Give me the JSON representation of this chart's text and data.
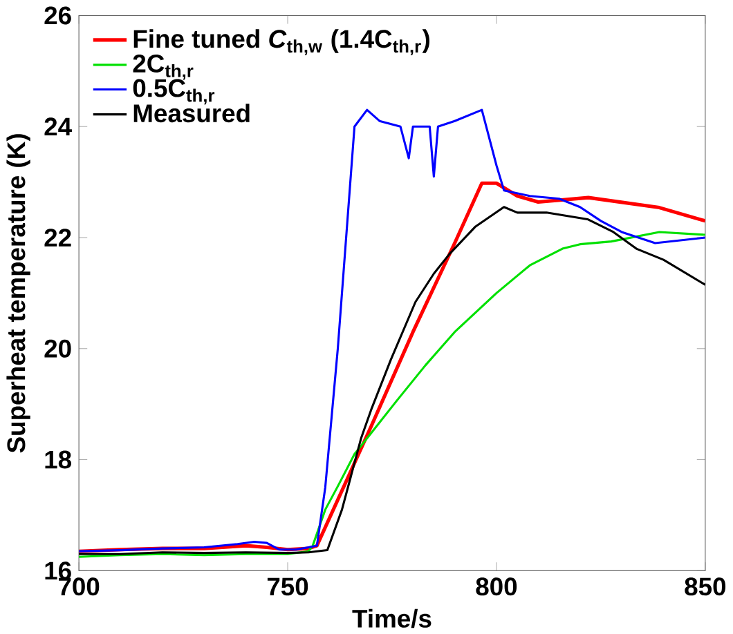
{
  "chart_data": {
    "type": "line",
    "xlabel": "Time/s",
    "ylabel": "Superheat temperature (K)",
    "xlim": [
      700,
      850
    ],
    "ylim": [
      16,
      26
    ],
    "xticks": [
      700,
      750,
      800,
      850
    ],
    "yticks": [
      16,
      18,
      20,
      22,
      24,
      26
    ],
    "legend": "top left",
    "grid": false,
    "marker": "none",
    "line_style": "solid",
    "series": [
      {
        "name": "Fine tuned *C*$_{th,w}$ (1.4C$_{th,r}$)",
        "color": "#ff0000",
        "x": [
          700,
          710,
          720,
          730,
          740,
          745,
          750,
          755,
          757,
          770,
          780,
          790,
          796.5,
          800,
          805,
          810,
          822,
          839,
          850
        ],
        "values": [
          16.35,
          16.38,
          16.4,
          16.4,
          16.45,
          16.42,
          16.38,
          16.4,
          16.45,
          18.6,
          20.3,
          21.9,
          22.98,
          22.98,
          22.75,
          22.64,
          22.72,
          22.54,
          22.3
        ]
      },
      {
        "name": "2C$_{th,r}$",
        "color": "#00e000",
        "x": [
          700,
          710,
          720,
          730,
          740,
          750,
          755,
          756,
          759,
          762,
          766,
          770,
          776,
          783,
          790,
          800,
          808,
          815.8,
          820,
          827.5,
          839,
          850
        ],
        "values": [
          16.25,
          16.28,
          16.3,
          16.28,
          16.3,
          16.3,
          16.35,
          16.45,
          17.1,
          17.52,
          18.1,
          18.48,
          19.05,
          19.7,
          20.3,
          21.0,
          21.5,
          21.8,
          21.88,
          21.93,
          22.1,
          22.05
        ]
      },
      {
        "name": "0.5C$_{th,r}$",
        "color": "#0000ff",
        "x": [
          700,
          710,
          720,
          730,
          738,
          742,
          745,
          748,
          752,
          755,
          757,
          759,
          762,
          764,
          766,
          769,
          772,
          777,
          779,
          780,
          784,
          785,
          786,
          790,
          796.5,
          800,
          801.8,
          808,
          815,
          820,
          825,
          830,
          838,
          850
        ],
        "values": [
          16.35,
          16.37,
          16.4,
          16.42,
          16.48,
          16.52,
          16.5,
          16.38,
          16.38,
          16.42,
          16.45,
          17.5,
          20,
          22,
          24,
          24.3,
          24.1,
          24.0,
          23.43,
          24.0,
          24.0,
          23.1,
          24.0,
          24.1,
          24.3,
          23.3,
          22.85,
          22.75,
          22.7,
          22.55,
          22.3,
          22.1,
          21.9,
          22.0
        ]
      },
      {
        "name": "Measured",
        "color": "#000000",
        "x": [
          700,
          710,
          720,
          730,
          740,
          750,
          755,
          759.5,
          763,
          767.6,
          770,
          774.7,
          780.6,
          785,
          788.7,
          795,
          801.8,
          805,
          812,
          821.8,
          828,
          833.5,
          840,
          850
        ],
        "values": [
          16.3,
          16.3,
          16.33,
          16.32,
          16.33,
          16.32,
          16.33,
          16.37,
          17.1,
          18.39,
          18.9,
          19.8,
          20.84,
          21.35,
          21.7,
          22.2,
          22.55,
          22.45,
          22.45,
          22.33,
          22.1,
          21.8,
          21.6,
          21.15
        ]
      }
    ]
  }
}
